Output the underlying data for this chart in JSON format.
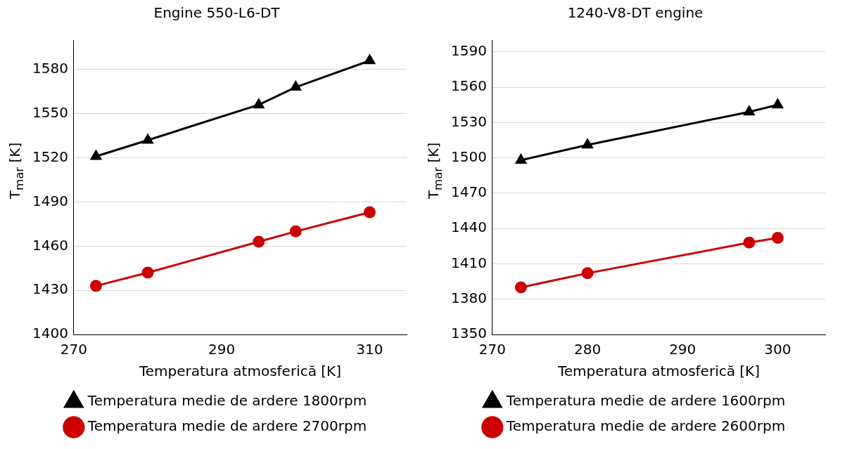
{
  "chart_data": [
    {
      "type": "line",
      "title": "Engine 550-L6-DT",
      "xlabel": "Temperatura atmosferică [K]",
      "ylabel": "T$_{mar}$ [K]",
      "xlim": [
        270,
        315
      ],
      "xticks": [
        270,
        290,
        310
      ],
      "ylim": [
        1400,
        1600
      ],
      "yticks": [
        1400,
        1430,
        1460,
        1490,
        1520,
        1550,
        1580
      ],
      "grid": "y",
      "legend": "bottom",
      "series": [
        {
          "name": "Temperatura medie de ardere 1800rpm",
          "color": "#000000",
          "marker": "triangle",
          "x": [
            273,
            280,
            295,
            300,
            310
          ],
          "values": [
            1521,
            1532,
            1556,
            1568,
            1586
          ]
        },
        {
          "name": "Temperatura medie de ardere 2700rpm",
          "color": "#cc0000",
          "marker": "circle",
          "x": [
            273,
            280,
            295,
            300,
            310
          ],
          "values": [
            1433,
            1442,
            1463,
            1470,
            1483
          ]
        }
      ]
    },
    {
      "type": "line",
      "title": "1240-V8-DT engine",
      "xlabel": "Temperatura atmosferică [K]",
      "ylabel": "T$_{mar}$ [K]",
      "xlim": [
        270,
        305
      ],
      "xticks": [
        270,
        280,
        290,
        300
      ],
      "ylim": [
        1350,
        1600
      ],
      "yticks": [
        1350,
        1380,
        1410,
        1440,
        1470,
        1500,
        1530,
        1560,
        1590
      ],
      "grid": "y",
      "legend": "bottom",
      "series": [
        {
          "name": "Temperatura medie de ardere 1600rpm",
          "color": "#000000",
          "marker": "triangle",
          "x": [
            273,
            280,
            297,
            300
          ],
          "values": [
            1498,
            1511,
            1539,
            1545
          ]
        },
        {
          "name": "Temperatura medie de ardere 2600rpm",
          "color": "#cc0000",
          "marker": "circle",
          "x": [
            273,
            280,
            297,
            300
          ],
          "values": [
            1390,
            1402,
            1428,
            1432
          ]
        }
      ]
    }
  ]
}
